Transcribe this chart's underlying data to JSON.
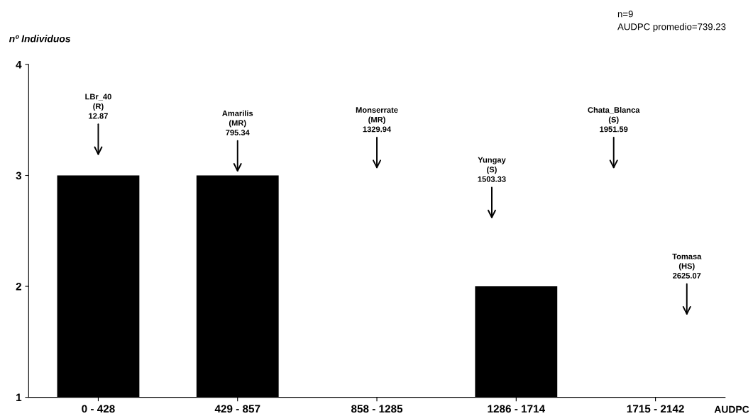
{
  "chart_data": {
    "type": "bar",
    "ylabel": "nº Individuos",
    "xlabel": "AUDPC",
    "categories": [
      "0 - 428",
      "429 - 857",
      "858 - 1285",
      "1286 - 1714",
      "1715 - 2142"
    ],
    "values": [
      3,
      3,
      1,
      2,
      1
    ],
    "color": "#000000",
    "ylim": [
      1,
      4
    ],
    "yticks": [
      1,
      2,
      3,
      4
    ],
    "grid": false,
    "legend": false,
    "annotations": [
      "n=9\nAUDPC promedio=739.23",
      "LBr_40\n(R)\n12.87",
      "Amarilis\n(MR)\n795.34",
      "Monserrate\n(MR)\n1329.94",
      "Yungay\n(S)\n1503.33",
      "Chata_Blanca\n(S)\n1951.59",
      "Tomasa\n(HS)\n2625.07"
    ]
  }
}
